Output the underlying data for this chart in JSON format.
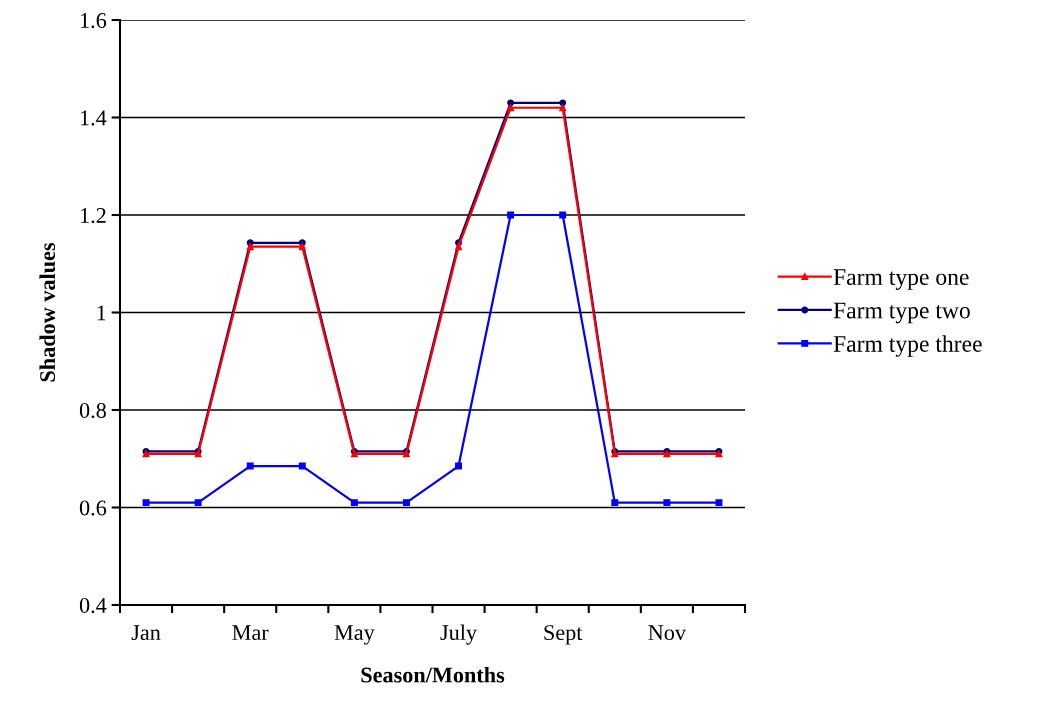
{
  "chart_data": {
    "type": "line",
    "xlabel": "Season/Months",
    "ylabel": "Shadow values",
    "categories": [
      "Jan",
      null,
      "Mar",
      null,
      "May",
      null,
      "July",
      null,
      "Sept",
      null,
      "Nov",
      null
    ],
    "series": [
      {
        "name": "Farm type one",
        "color": "#ff0000",
        "marker": "triangle",
        "values": [
          0.71,
          0.71,
          1.135,
          1.135,
          0.71,
          0.71,
          1.135,
          1.42,
          1.42,
          0.71,
          0.71,
          0.71
        ]
      },
      {
        "name": "Farm type two",
        "color": "#000080",
        "marker": "circle",
        "values": [
          0.715,
          0.715,
          1.143,
          1.143,
          0.715,
          0.715,
          1.143,
          1.43,
          1.43,
          0.715,
          0.715,
          0.715
        ]
      },
      {
        "name": "Farm type three",
        "color": "#0000ff",
        "marker": "square",
        "values": [
          0.61,
          0.61,
          0.685,
          0.685,
          0.61,
          0.61,
          0.685,
          1.2,
          1.2,
          0.61,
          0.61,
          0.61
        ]
      }
    ],
    "ylim": [
      0.4,
      1.6
    ],
    "yticks": [
      0.4,
      0.6,
      0.8,
      1,
      1.2,
      1.4,
      1.6
    ],
    "grid": "y",
    "legend": "right",
    "line_style": "solid"
  }
}
